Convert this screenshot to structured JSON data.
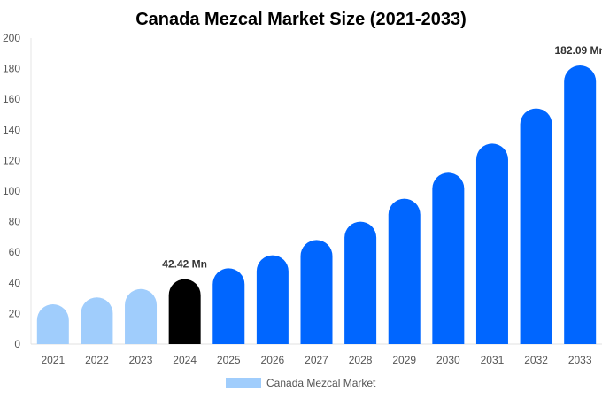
{
  "chart_data": {
    "type": "bar",
    "title": "Canada Mezcal Market Size (2021-2033)",
    "xlabel": "",
    "ylabel": "",
    "ylim": [
      0,
      200
    ],
    "yticks": [
      0,
      20,
      40,
      60,
      80,
      100,
      120,
      140,
      160,
      180,
      200
    ],
    "grid": false,
    "legend_position": "bottom",
    "categories": [
      "2021",
      "2022",
      "2023",
      "2024",
      "2025",
      "2026",
      "2027",
      "2028",
      "2029",
      "2030",
      "2031",
      "2032",
      "2033"
    ],
    "series": [
      {
        "name": "Canada Mezcal Market",
        "values": [
          26,
          30.5,
          36,
          42.42,
          49.5,
          58,
          68,
          80,
          95,
          112,
          131,
          154,
          182.09
        ]
      }
    ],
    "bar_colors": [
      "#a0cdfc",
      "#a0cdfc",
      "#a0cdfc",
      "#000000",
      "#0066ff",
      "#0066ff",
      "#0066ff",
      "#0066ff",
      "#0066ff",
      "#0066ff",
      "#0066ff",
      "#0066ff",
      "#0066ff"
    ],
    "legend_color": "#a0cdfc",
    "data_labels": [
      {
        "index": 3,
        "text": "42.42 Mn"
      },
      {
        "index": 12,
        "text": "182.09 Mn"
      }
    ]
  }
}
